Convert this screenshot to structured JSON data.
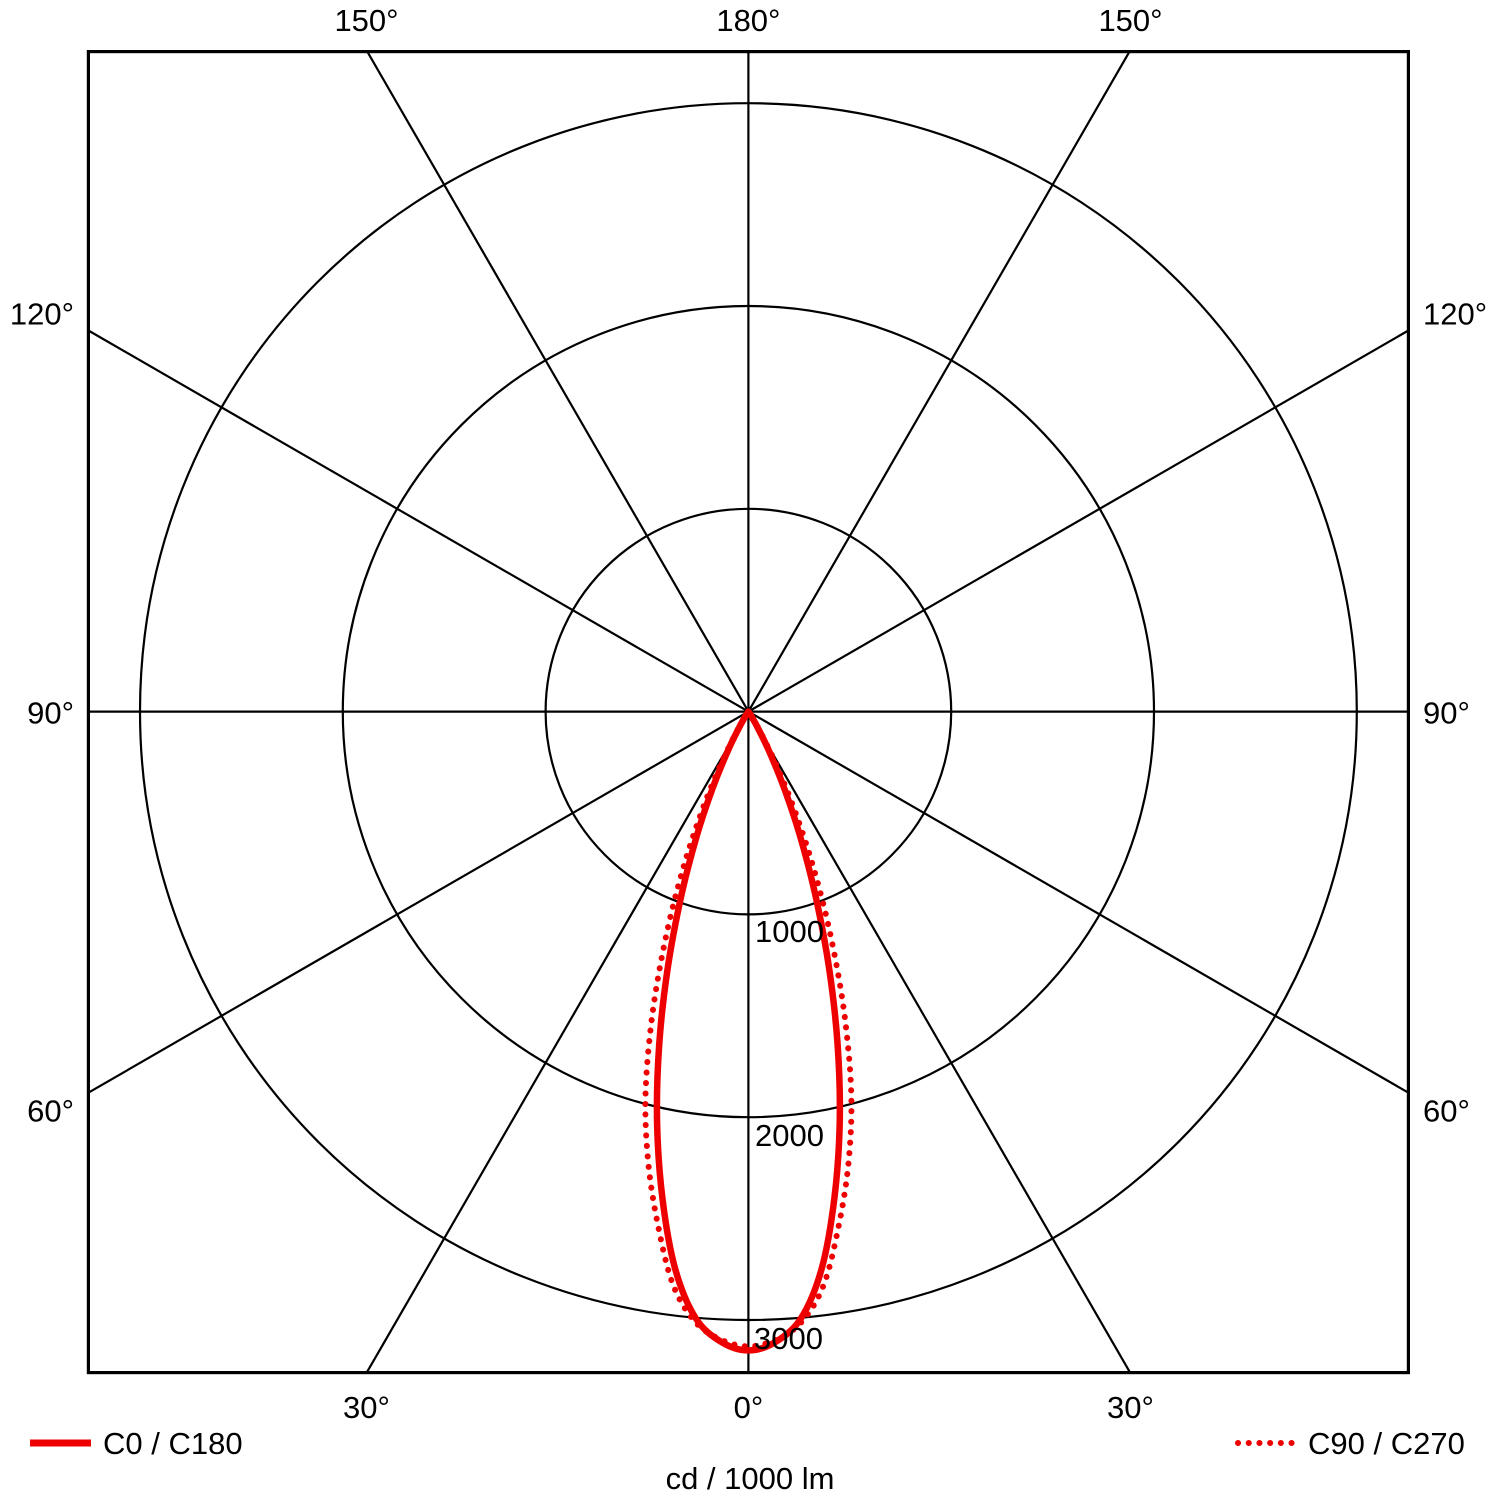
{
  "colors": {
    "curve": "#ee0000",
    "grid": "#000000",
    "text": "#000000",
    "background": "#ffffff"
  },
  "axis_labels": {
    "top": [
      "150°",
      "180°",
      "150°"
    ],
    "left": [
      "120°",
      "90°",
      "60°"
    ],
    "right": [
      "120°",
      "90°",
      "60°"
    ],
    "bottom": [
      "30°",
      "0°",
      "30°"
    ]
  },
  "ring_labels": [
    "1000",
    "2000",
    "3000"
  ],
  "caption": "cd / 1000 lm",
  "legend": [
    {
      "label": "C0 / C180",
      "style": "solid"
    },
    {
      "label": "C90 / C270",
      "style": "dotted"
    }
  ],
  "chart_data": {
    "type": "line",
    "polar": true,
    "units": "cd / 1000 lm",
    "angle_convention": "gamma angle, 0° pointing straight down, symmetric left/right",
    "gamma_deg": [
      0,
      2.5,
      5,
      7.5,
      10,
      12.5,
      15,
      17.5,
      20,
      22.5,
      25,
      27.5,
      30,
      32.5,
      35
    ],
    "series": [
      {
        "name": "C0 / C180",
        "style": "solid",
        "symmetric": true,
        "values": [
          3150,
          3110,
          3000,
          2770,
          2440,
          2080,
          1700,
          1320,
          970,
          670,
          420,
          230,
          100,
          30,
          0
        ]
      },
      {
        "name": "C90 / C270",
        "style": "dotted",
        "symmetric": true,
        "values": [
          3130,
          3100,
          3020,
          2850,
          2570,
          2280,
          1960,
          1580,
          1200,
          850,
          550,
          310,
          140,
          45,
          0
        ]
      }
    ],
    "radial_ticks": [
      1000,
      2000,
      3000
    ],
    "radial_tick_labels": [
      "1000",
      "2000",
      "3000"
    ],
    "rlim": [
      0,
      3250
    ],
    "angular_grid_step_deg": 30,
    "angle_labels_deg": [
      0,
      30,
      60,
      90,
      120,
      150,
      180
    ],
    "grid": true,
    "legend_position": "bottom"
  }
}
